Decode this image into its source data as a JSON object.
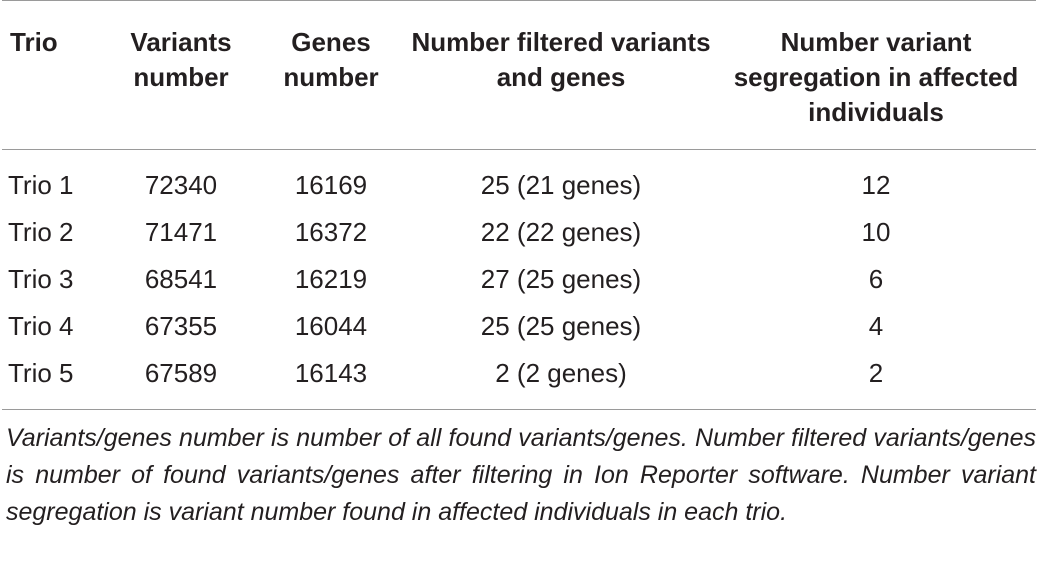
{
  "table": {
    "headers": {
      "trio": "Trio",
      "variants_number": "Variants number",
      "genes_number": "Genes number",
      "filtered": "Number filtered variants and genes",
      "segregation": "Number variant segregation in affected individuals"
    },
    "rows": [
      {
        "trio": "Trio 1",
        "variants": "72340",
        "genes": "16169",
        "filtered": "25 (21 genes)",
        "segregation": "12"
      },
      {
        "trio": "Trio 2",
        "variants": "71471",
        "genes": "16372",
        "filtered": "22 (22 genes)",
        "segregation": "10"
      },
      {
        "trio": "Trio 3",
        "variants": "68541",
        "genes": "16219",
        "filtered": "27 (25 genes)",
        "segregation": "6"
      },
      {
        "trio": "Trio 4",
        "variants": "67355",
        "genes": "16044",
        "filtered": "25 (25 genes)",
        "segregation": "4"
      },
      {
        "trio": "Trio 5",
        "variants": "67589",
        "genes": "16143",
        "filtered": "2 (2 genes)",
        "segregation": "2"
      }
    ]
  },
  "footnote": "Variants/genes number is number of all found variants/genes. Number filtered variants/genes is number of found variants/genes after filtering in Ion Reporter software. Number variant segregation is variant number found in affected individuals in each trio."
}
